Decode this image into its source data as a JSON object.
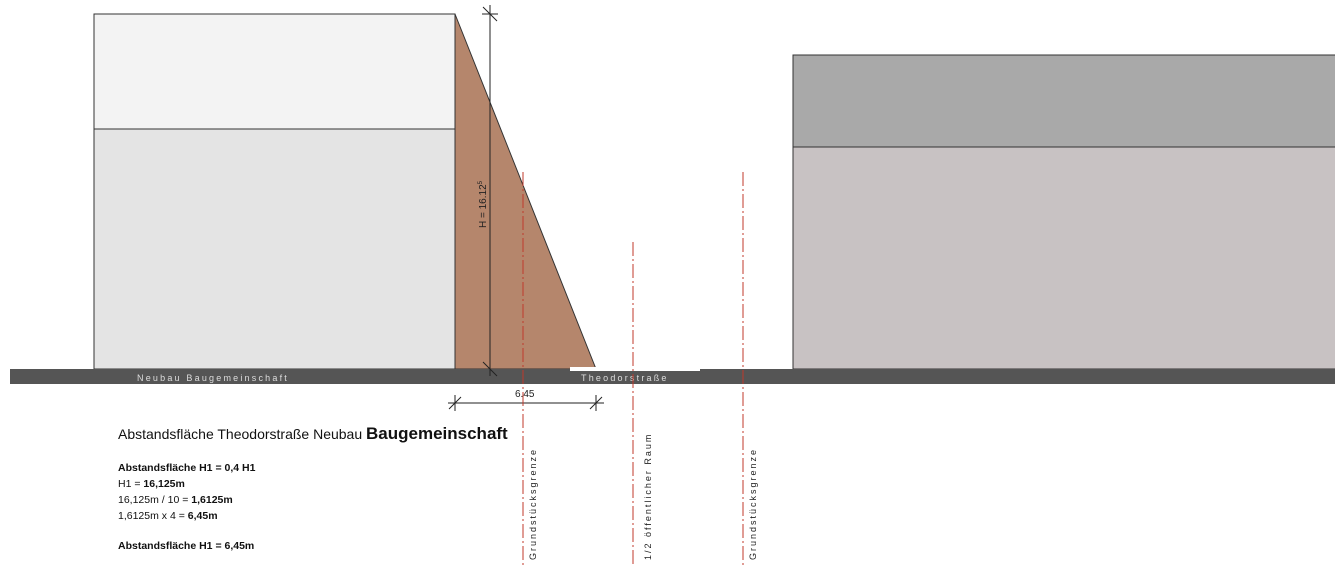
{
  "labels": {
    "ground_left": "Neubau Baugemeinschaft",
    "ground_right": "Theodorstraße",
    "height": "H = 16.12",
    "height_sup": "5",
    "dimension": "6.45",
    "line1": "Grundstücksgrenze",
    "line2": "1/2 öffentlicher Raum",
    "line3": "Grundstücksgrenze"
  },
  "notes": {
    "title_prefix": "Abstandsfläche Theodorstraße Neubau",
    "title_bold": "Baugemeinschaft",
    "l1": "Abstandsfläche H1 = 0,4 H1",
    "l2a": "H1 = ",
    "l2b": "16,125m",
    "l3a": "16,125m / 10 = ",
    "l3b": "1,6125m",
    "l4a": "1,6125m x 4 = ",
    "l4b": "6,45m",
    "l5": "Abstandsfläche H1 = 6,45m"
  },
  "colors": {
    "setback": "#b5866c",
    "building_left_top": "#f3f3f3",
    "building_left_bottom": "#e4e4e4",
    "building_right_top": "#a9a9a9",
    "building_right_bottom": "#c8c2c3",
    "ground": "#555555",
    "axis_line": "#c0392b"
  }
}
